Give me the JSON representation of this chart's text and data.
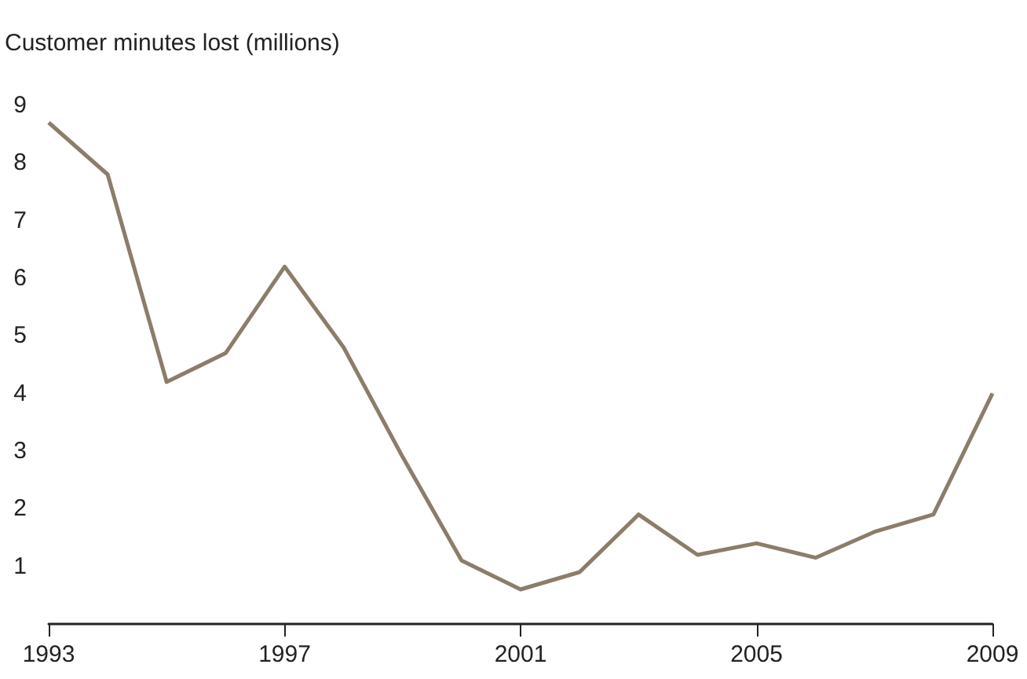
{
  "chart_data": {
    "type": "line",
    "ylabel": "Customer minutes lost (millions)",
    "x": [
      1993,
      1994,
      1995,
      1996,
      1997,
      1998,
      1999,
      2000,
      2001,
      2002,
      2003,
      2004,
      2005,
      2006,
      2007,
      2008,
      2009
    ],
    "series": [
      {
        "color": "#8c7d6a",
        "values": [
          8.7,
          7.8,
          4.2,
          4.7,
          6.2,
          4.8,
          2.9,
          1.1,
          0.6,
          0.9,
          1.9,
          1.2,
          1.4,
          1.15,
          1.6,
          1.9,
          4.0
        ]
      }
    ],
    "xlim": [
      1993,
      2009
    ],
    "xticks": [
      1993,
      1997,
      2001,
      2005,
      2009
    ],
    "ylim": [
      0,
      9
    ],
    "yticks": [
      1,
      2,
      3,
      4,
      5,
      6,
      7,
      8,
      9
    ],
    "grid": false,
    "marker": "none",
    "line_style": "solid"
  }
}
